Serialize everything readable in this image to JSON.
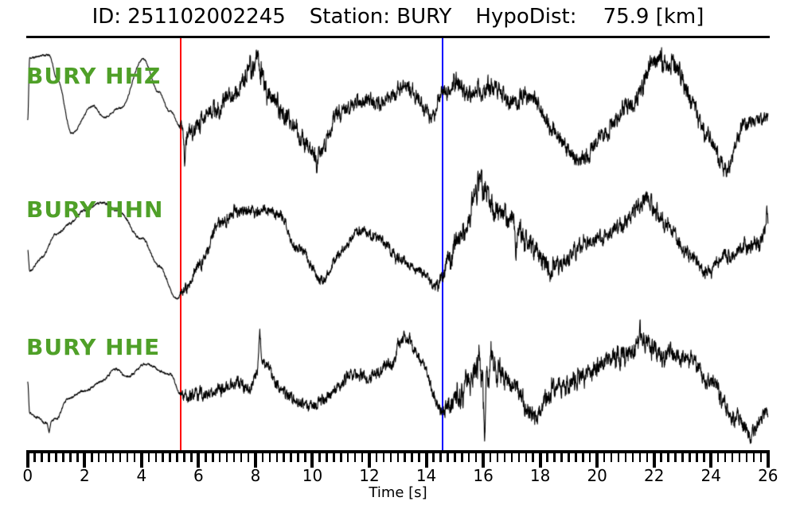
{
  "header": {
    "title_parts": [
      "ID: 251102002245",
      "Station: BURY",
      "HypoDist:    75.9 [km]"
    ]
  },
  "chart_data": {
    "type": "line",
    "title": "ID: 251102002245  Station: BURY  HypoDist: 75.9 [km]",
    "xlabel": "Time [s]",
    "xlim": [
      0,
      26
    ],
    "x_major_tick_step": 2,
    "x_minor_tick_step": 0.25,
    "x_tick_labels": [
      "0",
      "2",
      "4",
      "6",
      "8",
      "10",
      "12",
      "14",
      "16",
      "18",
      "20",
      "22",
      "24",
      "26"
    ],
    "grid": false,
    "legend": "none",
    "event_id": "251102002245",
    "station": "BURY",
    "hypodist_km": 75.9,
    "trace_color": "#000000",
    "label_color": "#4fa028",
    "markers": [
      {
        "name": "p-arrival",
        "time_s": 5.38,
        "color": "#ff0000"
      },
      {
        "name": "s-arrival",
        "time_s": 14.57,
        "color": "#0000ff"
      }
    ],
    "traces": [
      {
        "label": "BURY HHZ",
        "channel": "HHZ",
        "seed": 11,
        "midline": [
          [
            0,
            -10
          ],
          [
            0.07,
            68
          ],
          [
            0.75,
            70
          ],
          [
            1.05,
            40
          ],
          [
            1.55,
            -28
          ],
          [
            2.3,
            8
          ],
          [
            2.7,
            -8
          ],
          [
            3.25,
            4
          ],
          [
            4.05,
            65
          ],
          [
            4.6,
            25
          ],
          [
            5.0,
            0
          ],
          [
            5.38,
            -20
          ],
          [
            5.65,
            -27
          ],
          [
            6.5,
            -2
          ],
          [
            7.2,
            22
          ],
          [
            8.05,
            57
          ],
          [
            8.6,
            15
          ],
          [
            9.0,
            -8
          ],
          [
            10.1,
            -55
          ],
          [
            11.0,
            -2
          ],
          [
            11.9,
            18
          ],
          [
            12.4,
            6
          ],
          [
            13.1,
            33
          ],
          [
            14.2,
            -2
          ],
          [
            14.6,
            22
          ],
          [
            15.1,
            38
          ],
          [
            15.6,
            18
          ],
          [
            16.4,
            32
          ],
          [
            17.0,
            8
          ],
          [
            17.6,
            22
          ],
          [
            18.5,
            -25
          ],
          [
            19.4,
            -63
          ],
          [
            20.3,
            -28
          ],
          [
            21.2,
            12
          ],
          [
            22.2,
            66
          ],
          [
            22.7,
            55
          ],
          [
            23.3,
            15
          ],
          [
            23.8,
            -25
          ],
          [
            24.5,
            -72
          ],
          [
            25.2,
            -18
          ],
          [
            25.7,
            -10
          ],
          [
            26,
            -5
          ]
        ],
        "hf_envelope": [
          [
            0,
            1.3
          ],
          [
            5.3,
            1.3
          ],
          [
            5.5,
            13
          ],
          [
            7,
            12
          ],
          [
            8.2,
            15
          ],
          [
            10,
            12
          ],
          [
            12,
            10
          ],
          [
            14.4,
            11
          ],
          [
            15,
            14
          ],
          [
            17,
            12
          ],
          [
            19,
            11
          ],
          [
            21,
            12
          ],
          [
            22.5,
            14
          ],
          [
            24,
            11
          ],
          [
            26,
            9
          ]
        ],
        "spikes": [
          [
            5.52,
            -40
          ],
          [
            8.05,
            24
          ],
          [
            10.15,
            -26
          ],
          [
            22.2,
            16
          ]
        ]
      },
      {
        "label": "BURY HHN",
        "channel": "HHN",
        "seed": 23,
        "midline": [
          [
            0,
            -2
          ],
          [
            0.07,
            -30
          ],
          [
            0.5,
            -14
          ],
          [
            1.0,
            16
          ],
          [
            1.5,
            30
          ],
          [
            2.0,
            45
          ],
          [
            2.55,
            56
          ],
          [
            3.2,
            44
          ],
          [
            4.0,
            10
          ],
          [
            4.6,
            -24
          ],
          [
            5.25,
            -66
          ],
          [
            5.5,
            -58
          ],
          [
            6.0,
            -22
          ],
          [
            6.8,
            28
          ],
          [
            7.3,
            46
          ],
          [
            7.8,
            40
          ],
          [
            8.35,
            50
          ],
          [
            8.8,
            38
          ],
          [
            9.5,
            0
          ],
          [
            10.3,
            -42
          ],
          [
            11.0,
            -6
          ],
          [
            11.7,
            21
          ],
          [
            12.3,
            10
          ],
          [
            13.0,
            -12
          ],
          [
            13.7,
            -30
          ],
          [
            14.45,
            -47
          ],
          [
            14.8,
            -18
          ],
          [
            15.3,
            25
          ],
          [
            15.85,
            72
          ],
          [
            16.5,
            48
          ],
          [
            17.0,
            36
          ],
          [
            17.5,
            8
          ],
          [
            18.4,
            -28
          ],
          [
            19.2,
            -6
          ],
          [
            19.8,
            6
          ],
          [
            20.5,
            20
          ],
          [
            21.7,
            55
          ],
          [
            22.4,
            32
          ],
          [
            23.1,
            -8
          ],
          [
            23.9,
            -32
          ],
          [
            24.6,
            -12
          ],
          [
            25.1,
            -2
          ],
          [
            25.6,
            0
          ],
          [
            26,
            22
          ]
        ],
        "hf_envelope": [
          [
            0,
            1.6
          ],
          [
            5.3,
            1.6
          ],
          [
            5.5,
            8
          ],
          [
            8,
            8
          ],
          [
            10,
            6.5
          ],
          [
            14.4,
            7
          ],
          [
            14.75,
            15
          ],
          [
            16,
            17
          ],
          [
            18,
            13
          ],
          [
            20,
            10
          ],
          [
            22,
            11
          ],
          [
            24,
            9
          ],
          [
            26,
            11
          ]
        ],
        "spikes": [
          [
            15.9,
            14
          ],
          [
            17.15,
            -55
          ],
          [
            18.35,
            -20
          ],
          [
            25.95,
            24
          ]
        ]
      },
      {
        "label": "BURY HHE",
        "channel": "HHE",
        "seed": 37,
        "midline": [
          [
            0,
            0
          ],
          [
            0.07,
            -40
          ],
          [
            0.35,
            -46
          ],
          [
            0.6,
            -52
          ],
          [
            1.0,
            -46
          ],
          [
            1.4,
            -22
          ],
          [
            2.0,
            -11
          ],
          [
            2.6,
            0
          ],
          [
            3.1,
            16
          ],
          [
            3.5,
            7
          ],
          [
            4.2,
            22
          ],
          [
            5.0,
            9
          ],
          [
            5.38,
            -17
          ],
          [
            5.8,
            -14
          ],
          [
            6.3,
            -17
          ],
          [
            6.9,
            -8
          ],
          [
            7.3,
            -1
          ],
          [
            7.7,
            -12
          ],
          [
            8.2,
            26
          ],
          [
            9.0,
            -13
          ],
          [
            9.9,
            -32
          ],
          [
            10.8,
            -11
          ],
          [
            11.5,
            14
          ],
          [
            12.0,
            6
          ],
          [
            12.8,
            24
          ],
          [
            13.25,
            56
          ],
          [
            13.8,
            28
          ],
          [
            14.5,
            -36
          ],
          [
            15.2,
            -11
          ],
          [
            15.9,
            8
          ],
          [
            16.3,
            18
          ],
          [
            17.0,
            -6
          ],
          [
            17.8,
            -42
          ],
          [
            18.6,
            -6
          ],
          [
            19.3,
            1
          ],
          [
            20.2,
            24
          ],
          [
            21.6,
            46
          ],
          [
            22.5,
            33
          ],
          [
            23.2,
            30
          ],
          [
            24.0,
            -2
          ],
          [
            24.9,
            -46
          ],
          [
            25.35,
            -66
          ],
          [
            26,
            -36
          ]
        ],
        "hf_envelope": [
          [
            0,
            1.6
          ],
          [
            5.3,
            1.6
          ],
          [
            5.5,
            8.5
          ],
          [
            8,
            9
          ],
          [
            10,
            7.5
          ],
          [
            13,
            8.5
          ],
          [
            14.4,
            8.5
          ],
          [
            14.75,
            17
          ],
          [
            16,
            19
          ],
          [
            17.2,
            15
          ],
          [
            19,
            13
          ],
          [
            21,
            14
          ],
          [
            23,
            12
          ],
          [
            25,
            11
          ],
          [
            26,
            9
          ]
        ],
        "spikes": [
          [
            0.75,
            -14
          ],
          [
            8.15,
            42
          ],
          [
            13.0,
            18
          ],
          [
            15.85,
            36
          ],
          [
            16.05,
            -84
          ],
          [
            16.3,
            30
          ],
          [
            21.5,
            20
          ]
        ]
      }
    ]
  }
}
